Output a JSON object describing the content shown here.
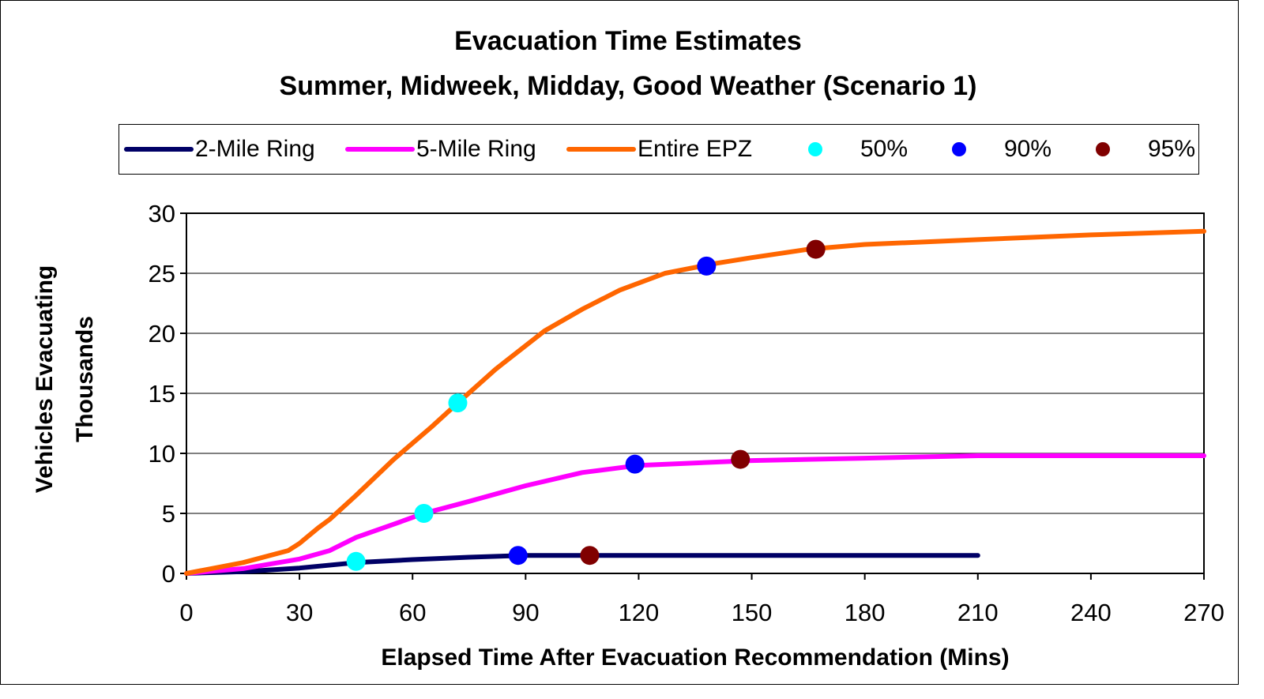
{
  "chart_data": {
    "type": "line",
    "title": "Evacuation Time Estimates",
    "subtitle": "Summer, Midweek, Midday, Good Weather (Scenario 1)",
    "xlabel": "Elapsed Time After Evacuation Recommendation (Mins)",
    "ylabel_line1": "Vehicles Evacuating",
    "ylabel_line2": "Thousands",
    "xlim": [
      0,
      270
    ],
    "ylim": [
      0,
      30
    ],
    "x_ticks": [
      0,
      30,
      60,
      90,
      120,
      150,
      180,
      210,
      240,
      270
    ],
    "y_ticks": [
      0,
      5,
      10,
      15,
      20,
      25,
      30
    ],
    "grid": "horizontal",
    "legend_position": "top",
    "series": [
      {
        "name": "2-Mile Ring",
        "color": "#000066",
        "x": [
          0,
          15,
          30,
          45,
          60,
          75,
          90,
          105,
          120,
          150,
          180,
          210
        ],
        "y": [
          0,
          0.15,
          0.45,
          0.9,
          1.15,
          1.35,
          1.5,
          1.5,
          1.5,
          1.5,
          1.5,
          1.5
        ]
      },
      {
        "name": "5-Mile Ring",
        "color": "#ff00ff",
        "x": [
          0,
          15,
          30,
          38,
          45,
          55,
          63,
          75,
          90,
          105,
          120,
          150,
          180,
          210,
          240,
          270
        ],
        "y": [
          0,
          0.4,
          1.2,
          1.9,
          3.0,
          4.1,
          5.0,
          6.0,
          7.3,
          8.4,
          9.0,
          9.4,
          9.6,
          9.8,
          9.8,
          9.8
        ]
      },
      {
        "name": "Entire EPZ",
        "color": "#ff6600",
        "x": [
          0,
          15,
          27,
          30,
          35,
          38,
          45,
          55,
          65,
          72,
          82,
          95,
          105,
          115,
          127,
          140,
          150,
          165,
          180,
          210,
          240,
          270
        ],
        "y": [
          0,
          0.9,
          1.9,
          2.5,
          3.8,
          4.5,
          6.5,
          9.5,
          12.2,
          14.2,
          17.0,
          20.2,
          22.0,
          23.6,
          25.0,
          25.8,
          26.3,
          27.0,
          27.4,
          27.8,
          28.2,
          28.5
        ]
      }
    ],
    "markers": [
      {
        "name": "50%",
        "color": "#00ffff",
        "points": [
          {
            "x": 45,
            "y": 1.0
          },
          {
            "x": 63,
            "y": 5.0
          },
          {
            "x": 72,
            "y": 14.2
          }
        ]
      },
      {
        "name": "90%",
        "color": "#0000ff",
        "points": [
          {
            "x": 88,
            "y": 1.5
          },
          {
            "x": 119,
            "y": 9.1
          },
          {
            "x": 138,
            "y": 25.6
          }
        ]
      },
      {
        "name": "95%",
        "color": "#800000",
        "points": [
          {
            "x": 107,
            "y": 1.5
          },
          {
            "x": 147,
            "y": 9.5
          },
          {
            "x": 167,
            "y": 27.0
          }
        ]
      }
    ]
  }
}
